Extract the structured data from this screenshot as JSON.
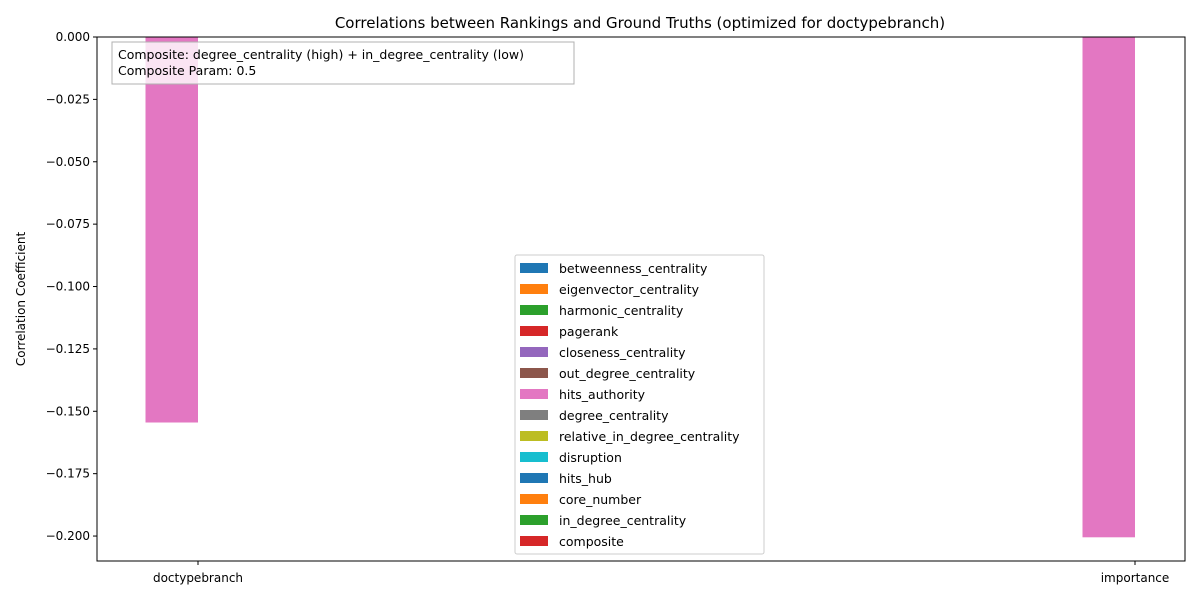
{
  "chart_data": {
    "type": "bar",
    "title": "Correlations between Rankings and Ground Truths (optimized for doctypebranch)",
    "xlabel": "",
    "ylabel": "Correlation Coefficient",
    "ylim": [
      -0.21,
      0.0
    ],
    "yticks": [
      0.0,
      -0.025,
      -0.05,
      -0.075,
      -0.1,
      -0.125,
      -0.15,
      -0.175,
      -0.2
    ],
    "ytick_labels": [
      "0.000",
      "−0.025",
      "−0.050",
      "−0.075",
      "−0.100",
      "−0.125",
      "−0.150",
      "−0.175",
      "−0.200"
    ],
    "categories": [
      "doctypebranch",
      "importance"
    ],
    "series": [
      {
        "name": "betweenness_centrality",
        "color": "#1f77b4",
        "values": [
          0,
          0
        ]
      },
      {
        "name": "eigenvector_centrality",
        "color": "#ff7f0e",
        "values": [
          0,
          0
        ]
      },
      {
        "name": "harmonic_centrality",
        "color": "#2ca02c",
        "values": [
          0,
          0
        ]
      },
      {
        "name": "pagerank",
        "color": "#d62728",
        "values": [
          0,
          0
        ]
      },
      {
        "name": "closeness_centrality",
        "color": "#9467bd",
        "values": [
          0,
          0
        ]
      },
      {
        "name": "out_degree_centrality",
        "color": "#8c564b",
        "values": [
          0,
          0
        ]
      },
      {
        "name": "hits_authority",
        "color": "#e377c2",
        "values": [
          -0.1545,
          -0.2005
        ]
      },
      {
        "name": "degree_centrality",
        "color": "#7f7f7f",
        "values": [
          0,
          0
        ]
      },
      {
        "name": "relative_in_degree_centrality",
        "color": "#bcbd22",
        "values": [
          0,
          0
        ]
      },
      {
        "name": "disruption",
        "color": "#17becf",
        "values": [
          0,
          0
        ]
      },
      {
        "name": "hits_hub",
        "color": "#1f77b4",
        "values": [
          0,
          0
        ]
      },
      {
        "name": "core_number",
        "color": "#ff7f0e",
        "values": [
          0,
          0
        ]
      },
      {
        "name": "in_degree_centrality",
        "color": "#2ca02c",
        "values": [
          0,
          0
        ]
      },
      {
        "name": "composite",
        "color": "#d62728",
        "values": [
          0,
          0
        ]
      }
    ],
    "legend_position": "lower center",
    "grid": false,
    "annotation": {
      "line1": "Composite: degree_centrality (high) + in_degree_centrality (low)",
      "line2": "Composite Param: 0.5"
    }
  }
}
